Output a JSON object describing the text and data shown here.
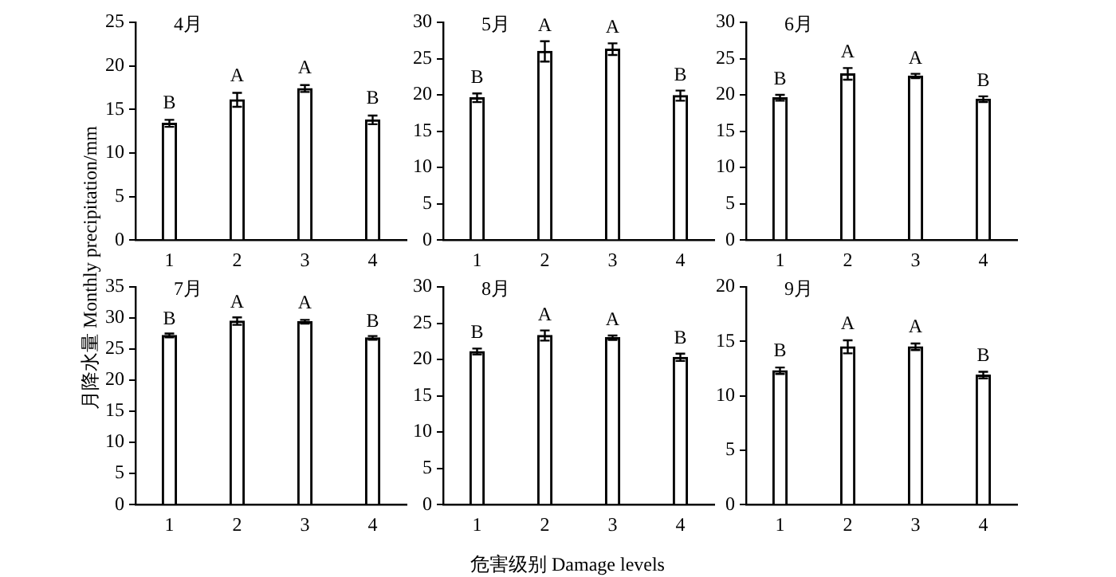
{
  "chart_data": [
    {
      "type": "bar",
      "title": "4月",
      "categories": [
        "1",
        "2",
        "3",
        "4"
      ],
      "values": [
        13.4,
        16.1,
        17.4,
        13.8
      ],
      "errors": [
        0.4,
        0.8,
        0.4,
        0.5
      ],
      "color": "#ffffff",
      "ylim": [
        0,
        25
      ],
      "yticks": [
        0,
        5,
        10,
        15,
        20,
        25
      ],
      "annotations": [
        {
          "text": "B",
          "x": "1",
          "y": 14.6
        },
        {
          "text": "A",
          "x": "2",
          "y": 17.7
        },
        {
          "text": "A",
          "x": "3",
          "y": 18.6
        },
        {
          "text": "B",
          "x": "4",
          "y": 15.1
        }
      ]
    },
    {
      "type": "bar",
      "title": "5月",
      "categories": [
        "1",
        "2",
        "3",
        "4"
      ],
      "values": [
        19.6,
        26.0,
        26.3,
        19.9
      ],
      "errors": [
        0.6,
        1.4,
        0.8,
        0.7
      ],
      "color": "#ffffff",
      "ylim": [
        0,
        30
      ],
      "yticks": [
        0,
        5,
        10,
        15,
        20,
        25,
        30
      ],
      "annotations": [
        {
          "text": "B",
          "x": "1",
          "y": 21.0
        },
        {
          "text": "A",
          "x": "2",
          "y": 28.2
        },
        {
          "text": "A",
          "x": "3",
          "y": 27.9
        },
        {
          "text": "B",
          "x": "4",
          "y": 21.4
        }
      ]
    },
    {
      "type": "bar",
      "title": "6月",
      "categories": [
        "1",
        "2",
        "3",
        "4"
      ],
      "values": [
        19.6,
        22.9,
        22.6,
        19.4
      ],
      "errors": [
        0.4,
        0.8,
        0.3,
        0.4
      ],
      "color": "#ffffff",
      "ylim": [
        0,
        30
      ],
      "yticks": [
        0,
        5,
        10,
        15,
        20,
        25,
        30
      ],
      "annotations": [
        {
          "text": "B",
          "x": "1",
          "y": 20.8
        },
        {
          "text": "A",
          "x": "2",
          "y": 24.5
        },
        {
          "text": "A",
          "x": "3",
          "y": 23.7
        },
        {
          "text": "B",
          "x": "4",
          "y": 20.6
        }
      ]
    },
    {
      "type": "bar",
      "title": "7月",
      "ylabel": "月降水量 Monthly precipitation/mm",
      "categories": [
        "1",
        "2",
        "3",
        "4"
      ],
      "values": [
        27.2,
        29.5,
        29.4,
        26.8
      ],
      "errors": [
        0.3,
        0.6,
        0.3,
        0.3
      ],
      "color": "#ffffff",
      "ylim": [
        0,
        35
      ],
      "yticks": [
        0,
        5,
        10,
        15,
        20,
        25,
        30,
        35
      ],
      "annotations": [
        {
          "text": "B",
          "x": "1",
          "y": 28.3
        },
        {
          "text": "A",
          "x": "2",
          "y": 30.9
        },
        {
          "text": "A",
          "x": "3",
          "y": 30.8
        },
        {
          "text": "B",
          "x": "4",
          "y": 27.9
        }
      ]
    },
    {
      "type": "bar",
      "title": "8月",
      "xlabel": "危害级别 Damage levels",
      "categories": [
        "1",
        "2",
        "3",
        "4"
      ],
      "values": [
        21.1,
        23.3,
        23.0,
        20.3
      ],
      "errors": [
        0.4,
        0.7,
        0.3,
        0.5
      ],
      "color": "#ffffff",
      "ylim": [
        0,
        30
      ],
      "yticks": [
        0,
        5,
        10,
        15,
        20,
        25,
        30
      ],
      "annotations": [
        {
          "text": "B",
          "x": "1",
          "y": 22.3
        },
        {
          "text": "A",
          "x": "2",
          "y": 24.8
        },
        {
          "text": "A",
          "x": "3",
          "y": 24.1
        },
        {
          "text": "B",
          "x": "4",
          "y": 21.6
        }
      ]
    },
    {
      "type": "bar",
      "title": "9月",
      "categories": [
        "1",
        "2",
        "3",
        "4"
      ],
      "values": [
        12.3,
        14.5,
        14.5,
        11.9
      ],
      "errors": [
        0.3,
        0.6,
        0.3,
        0.3
      ],
      "color": "#ffffff",
      "ylim": [
        0,
        20
      ],
      "yticks": [
        0,
        5,
        10,
        15,
        20
      ],
      "annotations": [
        {
          "text": "B",
          "x": "1",
          "y": 13.2
        },
        {
          "text": "A",
          "x": "2",
          "y": 15.7
        },
        {
          "text": "A",
          "x": "3",
          "y": 15.4
        },
        {
          "text": "B",
          "x": "4",
          "y": 12.8
        }
      ]
    }
  ]
}
